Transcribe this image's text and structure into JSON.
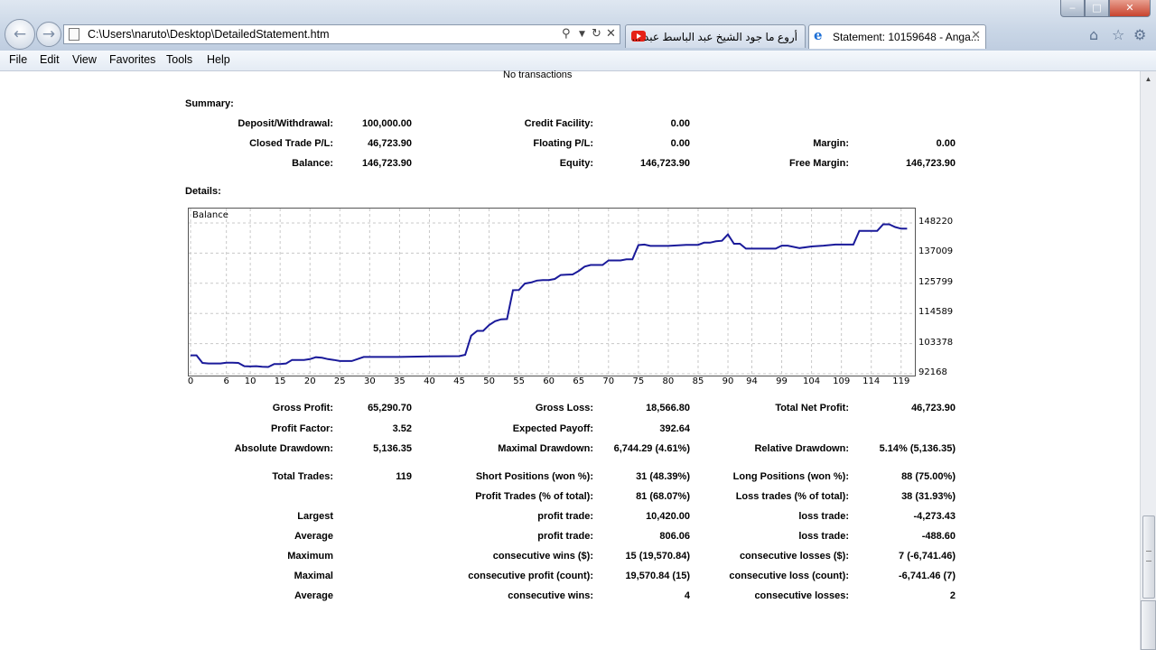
{
  "browser": {
    "url": "C:\\Users\\naruto\\Desktop\\DetailedStatement.htm",
    "tabs": [
      {
        "title": "أروع ما جود الشيخ عبد الباسط عبد ...",
        "icon": "youtube-icon"
      },
      {
        "title": "Statement: 10159648 - Anga...",
        "icon": "ie-icon"
      }
    ]
  },
  "menu": [
    "File",
    "Edit",
    "View",
    "Favorites",
    "Tools",
    "Help"
  ],
  "report": {
    "no_transactions": "No transactions",
    "summary_title": "Summary:",
    "details_title": "Details:",
    "summary": [
      {
        "label": "Deposit/Withdrawal:",
        "value": "100,000.00"
      },
      {
        "label": "Credit Facility:",
        "value": "0.00"
      },
      {
        "label": "Closed Trade P/L:",
        "value": "46,723.90"
      },
      {
        "label": "Floating P/L:",
        "value": "0.00"
      },
      {
        "label": "Margin:",
        "value": "0.00"
      },
      {
        "label": "Balance:",
        "value": "146,723.90"
      },
      {
        "label": "Equity:",
        "value": "146,723.90"
      },
      {
        "label": "Free Margin:",
        "value": "146,723.90"
      }
    ],
    "details": [
      {
        "label": "Gross Profit:",
        "value": "65,290.70"
      },
      {
        "label": "Gross Loss:",
        "value": "18,566.80"
      },
      {
        "label": "Total Net Profit:",
        "value": "46,723.90"
      },
      {
        "label": "Profit Factor:",
        "value": "3.52"
      },
      {
        "label": "Expected Payoff:",
        "value": "392.64"
      },
      {
        "label": "Absolute Drawdown:",
        "value": "5,136.35"
      },
      {
        "label": "Maximal Drawdown:",
        "value": "6,744.29 (4.61%)"
      },
      {
        "label": "Relative Drawdown:",
        "value": "5.14% (5,136.35)"
      },
      {
        "label": "Total Trades:",
        "value": "119"
      },
      {
        "label": "Short Positions (won %):",
        "value": "31 (48.39%)"
      },
      {
        "label": "Long Positions (won %):",
        "value": "88 (75.00%)"
      },
      {
        "label": "Profit Trades (% of total):",
        "value": "81 (68.07%)"
      },
      {
        "label": "Loss trades (% of total):",
        "value": "38 (31.93%)"
      },
      {
        "label": "Largest",
        "value": ""
      },
      {
        "label": "profit trade:",
        "value": "10,420.00"
      },
      {
        "label": "loss trade:",
        "value": "-4,273.43"
      },
      {
        "label": "Average",
        "value": ""
      },
      {
        "label": "profit trade:",
        "value": "806.06"
      },
      {
        "label": "loss trade:",
        "value": "-488.60"
      },
      {
        "label": "Maximum",
        "value": ""
      },
      {
        "label": "consecutive wins ($):",
        "value": "15 (19,570.84)"
      },
      {
        "label": "consecutive losses ($):",
        "value": "7 (-6,741.46)"
      },
      {
        "label": "Maximal",
        "value": ""
      },
      {
        "label": "consecutive profit (count):",
        "value": "19,570.84 (15)"
      },
      {
        "label": "consecutive loss (count):",
        "value": "-6,741.46 (7)"
      },
      {
        "label": "Average",
        "value": ""
      },
      {
        "label": "consecutive wins:",
        "value": "4"
      },
      {
        "label": "consecutive losses:",
        "value": "2"
      }
    ]
  },
  "chart_data": {
    "type": "line",
    "title": "Balance",
    "xlabel": "",
    "ylabel": "",
    "line_color": "#1a1a9a",
    "grid": true,
    "x_ticks": [
      0,
      6,
      10,
      15,
      20,
      25,
      30,
      35,
      40,
      45,
      50,
      55,
      60,
      65,
      70,
      75,
      80,
      85,
      90,
      94,
      99,
      104,
      109,
      114,
      119
    ],
    "y_ticks": [
      92168,
      103378,
      114589,
      125799,
      137009,
      148220
    ],
    "xlim": [
      0,
      121
    ],
    "ylim": [
      92168,
      148220
    ],
    "series": [
      {
        "x": [
          0,
          1,
          2,
          3,
          5,
          6,
          7,
          8,
          9,
          10,
          11,
          12,
          13,
          14,
          15,
          16,
          17,
          18,
          19,
          20,
          21,
          22,
          23,
          24,
          25,
          26,
          27,
          29,
          31,
          35,
          40,
          45,
          46,
          47,
          48,
          49,
          50,
          51,
          52,
          53,
          54,
          55,
          56,
          57,
          58,
          59,
          60,
          61,
          62,
          63,
          64,
          65,
          66,
          67,
          68,
          69,
          70,
          71,
          72,
          73,
          74,
          75,
          76,
          77,
          78,
          80,
          83,
          85,
          86,
          87,
          88,
          89,
          90,
          91,
          92,
          93,
          94,
          96,
          98,
          99,
          100,
          102,
          104,
          106,
          108,
          110,
          111,
          112,
          113,
          114,
          115,
          116,
          117,
          118,
          119,
          120
        ],
        "y": [
          99000,
          99000,
          96200,
          96000,
          96000,
          96300,
          96300,
          96200,
          95000,
          94900,
          95000,
          94800,
          94700,
          95800,
          95800,
          96000,
          97300,
          97300,
          97300,
          97600,
          98300,
          98100,
          97600,
          97300,
          96900,
          96900,
          96900,
          98400,
          98400,
          98400,
          98600,
          98700,
          99200,
          106300,
          108100,
          108100,
          110300,
          111700,
          112400,
          112500,
          123200,
          123300,
          125700,
          126100,
          126800,
          127000,
          127000,
          127400,
          128900,
          129000,
          129100,
          130400,
          132000,
          132600,
          132600,
          132600,
          134300,
          134300,
          134300,
          134700,
          134700,
          140000,
          140200,
          139700,
          139700,
          139700,
          140100,
          140100,
          140900,
          140900,
          141400,
          141600,
          144000,
          140500,
          140500,
          138700,
          138700,
          138700,
          138700,
          139800,
          139800,
          138900,
          139500,
          139800,
          140200,
          140200,
          140200,
          145300,
          145300,
          145300,
          145300,
          147700,
          147700,
          146700,
          146100,
          146100
        ]
      }
    ]
  }
}
